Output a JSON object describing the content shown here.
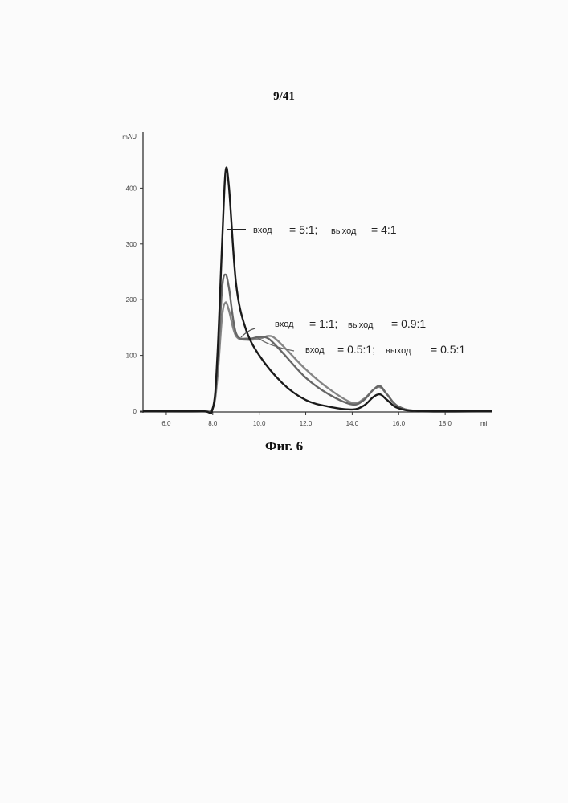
{
  "page": {
    "number": "9/41",
    "caption": "Фиг. 6"
  },
  "chart_data": {
    "type": "line",
    "title": "",
    "xlabel": "",
    "ylabel": "mAU",
    "xlim": [
      5.0,
      20.0
    ],
    "ylim": [
      0,
      500
    ],
    "x_ticks": [
      "6.0",
      "8.0",
      "10.0",
      "12.0",
      "14.0",
      "16.0",
      "18.0"
    ],
    "y_ticks": [
      "0",
      "100",
      "200",
      "300",
      "400"
    ],
    "y_top_label": "mAU",
    "x_end_label": "mi",
    "annotations": [
      {
        "in_label": "вход",
        "in_value": "= 5:1;",
        "out_label": "выход",
        "out_value": "= 4:1"
      },
      {
        "in_label": "вход",
        "in_value": "= 1:1;",
        "out_label": "выход",
        "out_value": "= 0.9:1"
      },
      {
        "in_label": "вход",
        "in_value": "= 0.5:1;",
        "out_label": "выход",
        "out_value": "= 0.5:1"
      }
    ],
    "series": [
      {
        "color": "#1a1a1a",
        "x": [
          5.0,
          7.5,
          8.0,
          8.2,
          8.4,
          8.55,
          8.7,
          9.0,
          9.4,
          10.0,
          11.0,
          12.0,
          13.0,
          14.0,
          14.5,
          14.9,
          15.2,
          15.5,
          16.0,
          17.0,
          20.0
        ],
        "y": [
          0,
          0,
          5,
          100,
          300,
          430,
          400,
          230,
          150,
          100,
          50,
          20,
          8,
          3,
          10,
          25,
          30,
          20,
          5,
          0,
          0
        ]
      },
      {
        "color": "#666666",
        "x": [
          5.0,
          7.5,
          8.0,
          8.2,
          8.4,
          8.55,
          8.7,
          9.0,
          9.5,
          10.0,
          10.4,
          11.0,
          12.0,
          13.0,
          14.0,
          14.5,
          14.9,
          15.2,
          15.5,
          16.0,
          17.0,
          20.0
        ],
        "y": [
          0,
          0,
          5,
          80,
          220,
          245,
          220,
          140,
          130,
          133,
          130,
          105,
          60,
          30,
          12,
          20,
          38,
          45,
          30,
          8,
          0,
          0
        ]
      },
      {
        "color": "#858585",
        "x": [
          5.0,
          7.5,
          8.0,
          8.2,
          8.4,
          8.55,
          8.7,
          9.0,
          9.5,
          10.0,
          10.4,
          10.7,
          11.3,
          12.0,
          13.0,
          14.0,
          14.5,
          14.9,
          15.2,
          15.5,
          16.0,
          17.0,
          20.0
        ],
        "y": [
          0,
          0,
          5,
          60,
          170,
          195,
          180,
          135,
          128,
          130,
          135,
          130,
          105,
          75,
          40,
          15,
          22,
          38,
          43,
          30,
          8,
          0,
          0
        ]
      }
    ]
  }
}
